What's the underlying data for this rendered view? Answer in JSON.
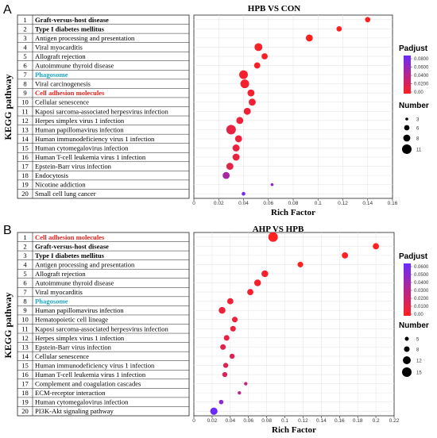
{
  "figure": {
    "panels": [
      {
        "letter": "A",
        "ylabel": "KEGG pathway",
        "legend_color_title": "Padjust",
        "legend_color_ticks": [
          "0.0800",
          "0.0600",
          "0.0400",
          "0.0200",
          "0.00"
        ],
        "legend_size_title": "Number",
        "legend_size_values": [
          "3",
          "6",
          "8",
          "11"
        ]
      },
      {
        "letter": "B",
        "ylabel": "KEGG pathway",
        "legend_color_title": "Padjust",
        "legend_color_ticks": [
          "0.0600",
          "0.0500",
          "0.0400",
          "0.0300",
          "0.0200",
          "0.0100",
          "0.00"
        ],
        "legend_size_title": "Number",
        "legend_size_values": [
          "5",
          "8",
          "12",
          "15"
        ]
      }
    ]
  },
  "colors": {
    "low_padj": "#ff2020",
    "high_padj": "#6a2bff",
    "highlight_red": "#e8231f",
    "highlight_cyan": "#1aa7c9"
  },
  "chart_data": [
    {
      "type": "scatter",
      "title": "HPB VS CON",
      "xlabel": "Rich Factor",
      "ylabel": "KEGG pathway",
      "xlim": [
        0,
        0.16
      ],
      "xticks": [
        "0",
        "0.02",
        "0.04",
        "0.06",
        "0.08",
        "0.1",
        "0.12",
        "0.14",
        "0.16"
      ],
      "grid": true,
      "legend": "right",
      "rows": [
        {
          "n": "1",
          "label": "Graft-versus-host disease",
          "style": "bold",
          "rich": 0.14,
          "padj": 0.0,
          "count": 6
        },
        {
          "n": "2",
          "label": "Type I diabetes mellitus",
          "style": "bold",
          "rich": 0.117,
          "padj": 0.0,
          "count": 6
        },
        {
          "n": "3",
          "label": "Antigen processing and presentation",
          "style": "normal",
          "rich": 0.093,
          "padj": 0.0,
          "count": 8
        },
        {
          "n": "4",
          "label": "Viral myocarditis",
          "style": "normal",
          "rich": 0.052,
          "padj": 0.003,
          "count": 9
        },
        {
          "n": "5",
          "label": "Allograft rejection",
          "style": "normal",
          "rich": 0.057,
          "padj": 0.002,
          "count": 7
        },
        {
          "n": "6",
          "label": "Autoimmune thyroid disease",
          "style": "normal",
          "rich": 0.051,
          "padj": 0.003,
          "count": 7
        },
        {
          "n": "7",
          "label": "Phagosome",
          "style": "cyan",
          "rich": 0.04,
          "padj": 0.005,
          "count": 10
        },
        {
          "n": "8",
          "label": "Viral carcinogenesis",
          "style": "normal",
          "rich": 0.041,
          "padj": 0.005,
          "count": 10
        },
        {
          "n": "9",
          "label": "Cell adhesion molecules",
          "style": "red",
          "rich": 0.046,
          "padj": 0.006,
          "count": 8
        },
        {
          "n": "10",
          "label": "Cellular senescence",
          "style": "normal",
          "rich": 0.047,
          "padj": 0.008,
          "count": 8
        },
        {
          "n": "11",
          "label": "Kaposi sarcoma-associated herpesvirus infection",
          "style": "normal",
          "rich": 0.043,
          "padj": 0.008,
          "count": 8
        },
        {
          "n": "12",
          "label": "Herpes simplex virus 1 infection",
          "style": "normal",
          "rich": 0.037,
          "padj": 0.01,
          "count": 8
        },
        {
          "n": "13",
          "label": "Human papillomavirus infection",
          "style": "normal",
          "rich": 0.03,
          "padj": 0.014,
          "count": 11
        },
        {
          "n": "14",
          "label": "Human immunodeficiency virus 1 infection",
          "style": "normal",
          "rich": 0.036,
          "padj": 0.01,
          "count": 8
        },
        {
          "n": "15",
          "label": "Human cytomegalovirus infection",
          "style": "normal",
          "rich": 0.034,
          "padj": 0.012,
          "count": 8
        },
        {
          "n": "16",
          "label": "Human T-cell leukemia virus 1 infection",
          "style": "normal",
          "rich": 0.034,
          "padj": 0.012,
          "count": 8
        },
        {
          "n": "17",
          "label": "Epstein-Barr virus infection",
          "style": "normal",
          "rich": 0.029,
          "padj": 0.015,
          "count": 8
        },
        {
          "n": "18",
          "label": "Endocytosis",
          "style": "normal",
          "rich": 0.026,
          "padj": 0.05,
          "count": 8
        },
        {
          "n": "19",
          "label": "Nicotine addiction",
          "style": "normal",
          "rich": 0.063,
          "padj": 0.065,
          "count": 3
        },
        {
          "n": "20",
          "label": "Small cell lung cancer",
          "style": "normal",
          "rich": 0.04,
          "padj": 0.08,
          "count": 4
        }
      ],
      "size_range": [
        3,
        11
      ],
      "padj_range": [
        0,
        0.085
      ]
    },
    {
      "type": "scatter",
      "title": "AHP VS HPB",
      "xlabel": "Rich Factor",
      "ylabel": "KEGG pathway",
      "xlim": [
        0,
        0.22
      ],
      "xticks": [
        "0",
        "0.02",
        "0.04",
        "0.06",
        "0.08",
        "0.1",
        "0.12",
        "0.14",
        "0.16",
        "0.18",
        "0.2",
        "0.22"
      ],
      "grid": true,
      "legend": "right",
      "rows": [
        {
          "n": "1",
          "label": "Cell adhesion molecules",
          "style": "red",
          "rich": 0.087,
          "padj": 0.0,
          "count": 15
        },
        {
          "n": "2",
          "label": "Graft-versus-host disease",
          "style": "bold",
          "rich": 0.2,
          "padj": 0.0,
          "count": 9
        },
        {
          "n": "3",
          "label": "Type I diabetes mellitus",
          "style": "bold",
          "rich": 0.166,
          "padj": 0.0,
          "count": 9
        },
        {
          "n": "4",
          "label": "Antigen processing and presentation",
          "style": "normal",
          "rich": 0.117,
          "padj": 0.0,
          "count": 8
        },
        {
          "n": "5",
          "label": "Allograft rejection",
          "style": "normal",
          "rich": 0.078,
          "padj": 0.002,
          "count": 10
        },
        {
          "n": "6",
          "label": "Autoimmune thyroid disease",
          "style": "normal",
          "rich": 0.07,
          "padj": 0.003,
          "count": 10
        },
        {
          "n": "7",
          "label": "Viral myocarditis",
          "style": "normal",
          "rich": 0.062,
          "padj": 0.004,
          "count": 9
        },
        {
          "n": "8",
          "label": "Phagosome",
          "style": "cyan",
          "rich": 0.04,
          "padj": 0.006,
          "count": 9
        },
        {
          "n": "9",
          "label": "Human papillomavirus infection",
          "style": "normal",
          "rich": 0.031,
          "padj": 0.007,
          "count": 10
        },
        {
          "n": "10",
          "label": "Hematopoietic cell lineage",
          "style": "normal",
          "rich": 0.045,
          "padj": 0.008,
          "count": 8
        },
        {
          "n": "11",
          "label": "Kaposi sarcoma-associated herpesvirus infection",
          "style": "normal",
          "rich": 0.043,
          "padj": 0.008,
          "count": 8
        },
        {
          "n": "12",
          "label": "Herpes simplex virus 1 infection",
          "style": "normal",
          "rich": 0.036,
          "padj": 0.01,
          "count": 8
        },
        {
          "n": "13",
          "label": "Epstein-Barr virus infection",
          "style": "normal",
          "rich": 0.032,
          "padj": 0.012,
          "count": 8
        },
        {
          "n": "14",
          "label": "Cellular senescence",
          "style": "normal",
          "rich": 0.042,
          "padj": 0.014,
          "count": 7
        },
        {
          "n": "15",
          "label": "Human immunodeficiency virus 1 infection",
          "style": "normal",
          "rich": 0.035,
          "padj": 0.015,
          "count": 7
        },
        {
          "n": "16",
          "label": "Human T-cell leukemia virus 1 infection",
          "style": "normal",
          "rich": 0.034,
          "padj": 0.016,
          "count": 7
        },
        {
          "n": "17",
          "label": "Complement and coagulation cascades",
          "style": "normal",
          "rich": 0.057,
          "padj": 0.025,
          "count": 4
        },
        {
          "n": "18",
          "label": "ECM-receptor interaction",
          "style": "normal",
          "rich": 0.05,
          "padj": 0.03,
          "count": 4
        },
        {
          "n": "19",
          "label": "Human cytomegalovirus infection",
          "style": "normal",
          "rich": 0.03,
          "padj": 0.05,
          "count": 6
        },
        {
          "n": "20",
          "label": "PI3K-Akt signaling pathway",
          "style": "normal",
          "rich": 0.022,
          "padj": 0.065,
          "count": 11
        }
      ],
      "size_range": [
        3,
        15
      ],
      "padj_range": [
        0,
        0.065
      ]
    }
  ]
}
